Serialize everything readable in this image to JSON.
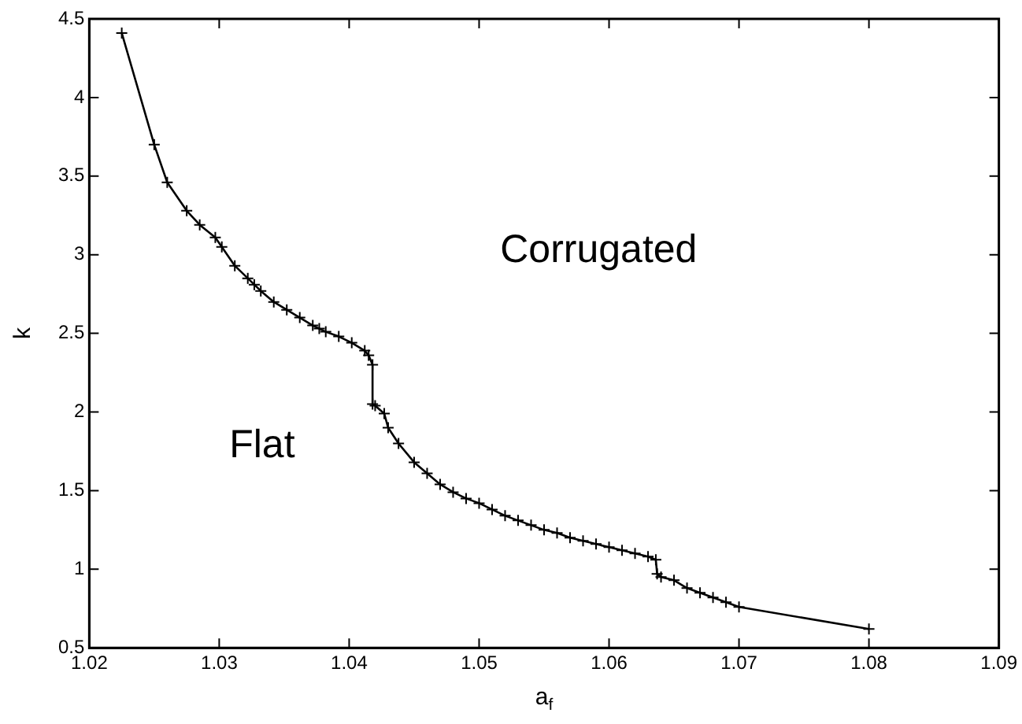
{
  "chart_data": {
    "type": "line",
    "xlabel": "a$_{f}$",
    "ylabel": "k",
    "xlim": [
      1.02,
      1.09
    ],
    "xticks": [
      {
        "value": 1.02,
        "label": "1.02"
      },
      {
        "value": 1.03,
        "label": "1.03"
      },
      {
        "value": 1.04,
        "label": "1.04"
      },
      {
        "value": 1.05,
        "label": "1.05"
      },
      {
        "value": 1.06,
        "label": "1.06"
      },
      {
        "value": 1.07,
        "label": "1.07"
      },
      {
        "value": 1.08,
        "label": "1.08"
      },
      {
        "value": 1.09,
        "label": "1.09"
      }
    ],
    "ylim": [
      0.5,
      4.5
    ],
    "yticks": [
      0.5,
      1,
      1.5,
      2,
      2.5,
      3,
      3.5,
      4,
      4.5
    ],
    "grid": false,
    "marker": "cross",
    "line_style": "solid",
    "annotations": [
      "Corrugated",
      "Flat"
    ],
    "series": [
      {
        "color": "#000000",
        "x": [
          1.0225,
          1.025,
          1.026,
          1.0275,
          1.0285,
          1.0297,
          1.0302,
          1.0312,
          1.0322,
          1.0327,
          1.0332,
          1.0342,
          1.0352,
          1.0362,
          1.0372,
          1.0377,
          1.0382,
          1.0392,
          1.0402,
          1.0412,
          1.0415,
          1.0418,
          1.0418,
          1.042,
          1.0427,
          1.043,
          1.0438,
          1.045,
          1.046,
          1.047,
          1.048,
          1.049,
          1.05,
          1.051,
          1.052,
          1.053,
          1.054,
          1.055,
          1.056,
          1.057,
          1.058,
          1.059,
          1.06,
          1.061,
          1.062,
          1.063,
          1.0636,
          1.0637,
          1.064,
          1.065,
          1.066,
          1.067,
          1.068,
          1.069,
          1.07,
          1.08
        ],
        "values": [
          4.41,
          3.7,
          3.46,
          3.28,
          3.19,
          3.11,
          3.05,
          2.93,
          2.85,
          2.81,
          2.77,
          2.7,
          2.65,
          2.6,
          2.55,
          2.53,
          2.51,
          2.48,
          2.44,
          2.39,
          2.36,
          2.3,
          2.05,
          2.04,
          1.99,
          1.9,
          1.8,
          1.68,
          1.61,
          1.54,
          1.49,
          1.45,
          1.42,
          1.38,
          1.34,
          1.31,
          1.28,
          1.25,
          1.23,
          1.2,
          1.18,
          1.16,
          1.14,
          1.12,
          1.1,
          1.08,
          1.06,
          0.97,
          0.95,
          0.93,
          0.88,
          0.85,
          0.82,
          0.79,
          0.76,
          0.62
        ]
      }
    ]
  }
}
